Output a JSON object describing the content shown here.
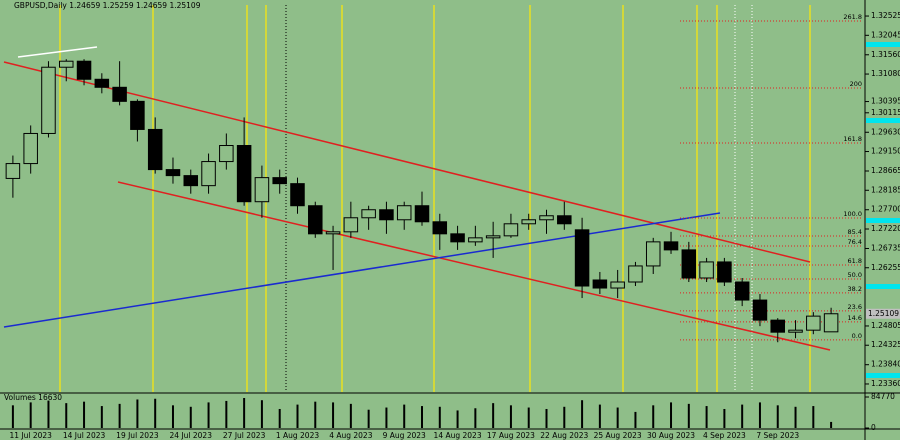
{
  "chart_data": [
    {
      "type": "candlestick",
      "title": "GBPUSD,Daily  1.24659 1.25259 1.24659 1.25109",
      "categories": [
        null,
        "11 Jul 2023",
        null,
        null,
        "14 Jul 2023",
        null,
        null,
        "19 Jul 2023",
        null,
        null,
        "24 Jul 2023",
        null,
        null,
        "27 Jul 2023",
        null,
        null,
        "1 Aug 2023",
        null,
        null,
        "4 Aug 2023",
        null,
        null,
        "9 Aug 2023",
        null,
        null,
        "14 Aug 2023",
        null,
        null,
        "17 Aug 2023",
        null,
        null,
        "22 Aug 2023",
        null,
        null,
        "25 Aug 2023",
        null,
        null,
        "30 Aug 2023",
        null,
        null,
        "4 Sep 2023",
        null,
        null,
        "7 Sep 2023",
        null,
        null,
        null
      ],
      "open": [
        1.2848,
        1.2885,
        1.296,
        1.3125,
        1.314,
        1.3095,
        1.3075,
        1.304,
        1.297,
        1.287,
        1.2855,
        1.283,
        1.289,
        1.293,
        1.279,
        1.285,
        1.2835,
        1.278,
        1.271,
        1.2715,
        1.275,
        1.277,
        1.2745,
        1.278,
        1.274,
        1.271,
        1.269,
        1.27,
        1.2705,
        1.2735,
        1.2745,
        1.2755,
        1.272,
        1.2595,
        1.2575,
        1.259,
        1.263,
        1.269,
        1.267,
        1.26,
        1.264,
        1.259,
        1.2545,
        1.2495,
        1.2465,
        1.247,
        1.24659
      ],
      "high": [
        1.2905,
        1.298,
        1.314,
        1.3145,
        1.3145,
        1.311,
        1.314,
        1.3045,
        1.3,
        1.29,
        1.287,
        1.291,
        1.296,
        1.3,
        1.288,
        1.287,
        1.285,
        1.279,
        1.273,
        1.279,
        1.278,
        1.279,
        1.279,
        1.2815,
        1.276,
        1.273,
        1.273,
        1.274,
        1.276,
        1.276,
        1.277,
        1.279,
        1.275,
        1.2615,
        1.262,
        1.264,
        1.27,
        1.2715,
        1.269,
        1.265,
        1.265,
        1.26,
        1.256,
        1.25,
        1.2495,
        1.2515,
        1.25259
      ],
      "low": [
        1.28,
        1.286,
        1.295,
        1.309,
        1.308,
        1.306,
        1.303,
        1.294,
        1.286,
        1.2835,
        1.281,
        1.281,
        1.287,
        1.278,
        1.275,
        1.281,
        1.276,
        1.27,
        1.262,
        1.27,
        1.272,
        1.271,
        1.272,
        1.273,
        1.267,
        1.267,
        1.268,
        1.265,
        1.27,
        1.272,
        1.271,
        1.272,
        1.255,
        1.256,
        1.255,
        1.258,
        1.261,
        1.266,
        1.259,
        1.259,
        1.258,
        1.253,
        1.248,
        1.244,
        1.245,
        1.246,
        1.24659
      ],
      "close": [
        1.2885,
        1.296,
        1.3125,
        1.314,
        1.3095,
        1.3075,
        1.304,
        1.297,
        1.287,
        1.2855,
        1.283,
        1.289,
        1.293,
        1.279,
        1.285,
        1.2835,
        1.278,
        1.271,
        1.2715,
        1.275,
        1.277,
        1.2745,
        1.278,
        1.274,
        1.271,
        1.269,
        1.27,
        1.2705,
        1.2735,
        1.2745,
        1.2755,
        1.2735,
        1.258,
        1.2575,
        1.259,
        1.263,
        1.269,
        1.267,
        1.26,
        1.264,
        1.259,
        1.2545,
        1.2495,
        1.2465,
        1.247,
        1.2505,
        1.25109
      ],
      "up_color": "#8fbe89",
      "down_color": "#000000",
      "ylim": [
        1.2316,
        1.328
      ],
      "yticks": [
        {
          "value": 1.32525,
          "label": "1.32525"
        },
        {
          "value": 1.32045,
          "label": "1.32045"
        },
        {
          "value": 1.3156,
          "label": "1.31560"
        },
        {
          "value": 1.3108,
          "label": "1.31080"
        },
        {
          "value": 1.30395,
          "label": "1.30395"
        },
        {
          "value": 1.30115,
          "label": "1.30115"
        },
        {
          "value": 1.2963,
          "label": "1.29630"
        },
        {
          "value": 1.2915,
          "label": "1.29150"
        },
        {
          "value": 1.28665,
          "label": "1.28665"
        },
        {
          "value": 1.28185,
          "label": "1.28185"
        },
        {
          "value": 1.277,
          "label": "1.27700"
        },
        {
          "value": 1.2722,
          "label": "1.27220"
        },
        {
          "value": 1.26735,
          "label": "1.26735"
        },
        {
          "value": 1.26255,
          "label": "1.26255"
        },
        {
          "value": 1.24805,
          "label": "1.24805"
        },
        {
          "value": 1.24325,
          "label": "1.24325"
        },
        {
          "value": 1.2384,
          "label": "1.23840"
        },
        {
          "value": 1.2336,
          "label": "1.23360"
        }
      ],
      "fib_levels": [
        {
          "label": "261.8",
          "price": 1.324
        },
        {
          "label": "200",
          "price": 1.30732
        },
        {
          "label": "161.8",
          "price": 1.29363
        },
        {
          "label": "100.0",
          "price": 1.27495
        },
        {
          "label": "85.4",
          "price": 1.27047
        },
        {
          "label": "76.4",
          "price": 1.26798
        },
        {
          "label": "61.8",
          "price": 1.26325
        },
        {
          "label": "50.0",
          "price": 1.25976
        },
        {
          "label": "38.2",
          "price": 1.25628
        },
        {
          "label": "23.6",
          "price": 1.2518
        },
        {
          "label": "14.6",
          "price": 1.24906
        },
        {
          "label": "0.0",
          "price": 1.24457
        }
      ],
      "fib_color": "#e02020"
    },
    {
      "type": "bar",
      "title": "Volumes 16630",
      "values": [
        62000,
        70000,
        75000,
        68000,
        72000,
        60000,
        66000,
        78000,
        80000,
        62000,
        58000,
        70000,
        74000,
        82000,
        76000,
        52000,
        64000,
        72000,
        70000,
        66000,
        50000,
        56000,
        64000,
        60000,
        58000,
        48000,
        54000,
        68000,
        62000,
        56000,
        52000,
        58000,
        76000,
        64000,
        56000,
        44000,
        62000,
        70000,
        66000,
        60000,
        52000,
        64000,
        70000,
        62000,
        58000,
        60000,
        16630
      ],
      "color": "#000000",
      "ylim": [
        0,
        84770
      ],
      "yticks": [
        84770,
        0
      ]
    }
  ]
}
